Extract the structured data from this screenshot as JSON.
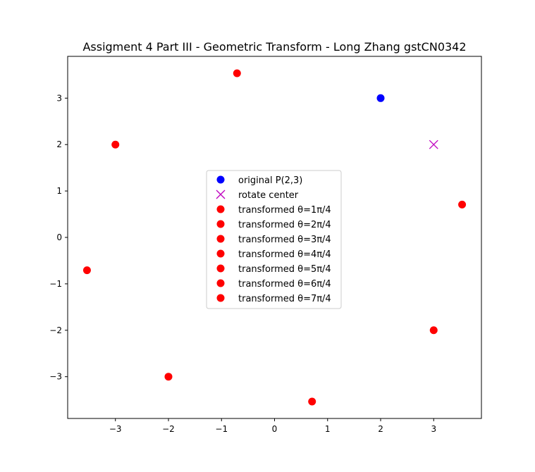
{
  "chart_data": {
    "type": "scatter",
    "title": "Assigment 4 Part III - Geometric Transform - Long Zhang gstCN0342",
    "xlabel": "",
    "ylabel": "",
    "xlim": [
      -3.9,
      3.9
    ],
    "ylim": [
      -3.9,
      3.9
    ],
    "xticks": [
      -3,
      -2,
      -1,
      0,
      1,
      2,
      3
    ],
    "yticks": [
      -3,
      -2,
      -1,
      0,
      1,
      2,
      3
    ],
    "xtick_labels": [
      "−3",
      "−2",
      "−1",
      "0",
      "1",
      "2",
      "3"
    ],
    "ytick_labels": [
      "−3",
      "−2",
      "−1",
      "0",
      "1",
      "2",
      "3"
    ],
    "grid": false,
    "legend_position": "center",
    "series": [
      {
        "name": "original P(2,3)",
        "marker": "circle",
        "color": "#0000ff",
        "points": [
          [
            2,
            3
          ]
        ]
      },
      {
        "name": "rotate center",
        "marker": "x",
        "color": "#bf00bf",
        "points": [
          [
            3,
            2
          ]
        ]
      },
      {
        "name": "transformed θ=1π/4",
        "marker": "circle",
        "color": "#ff0000",
        "points": [
          [
            3.5355,
            0.7071
          ]
        ]
      },
      {
        "name": "transformed θ=2π/4",
        "marker": "circle",
        "color": "#ff0000",
        "points": [
          [
            3,
            -2
          ]
        ]
      },
      {
        "name": "transformed θ=3π/4",
        "marker": "circle",
        "color": "#ff0000",
        "points": [
          [
            0.7071,
            -3.5355
          ]
        ]
      },
      {
        "name": "transformed θ=4π/4",
        "marker": "circle",
        "color": "#ff0000",
        "points": [
          [
            -2,
            -3
          ]
        ]
      },
      {
        "name": "transformed θ=5π/4",
        "marker": "circle",
        "color": "#ff0000",
        "points": [
          [
            -3.5355,
            -0.7071
          ]
        ]
      },
      {
        "name": "transformed θ=6π/4",
        "marker": "circle",
        "color": "#ff0000",
        "points": [
          [
            -3,
            2
          ]
        ]
      },
      {
        "name": "transformed θ=7π/4",
        "marker": "circle",
        "color": "#ff0000",
        "points": [
          [
            -0.7071,
            3.5355
          ]
        ]
      }
    ]
  }
}
